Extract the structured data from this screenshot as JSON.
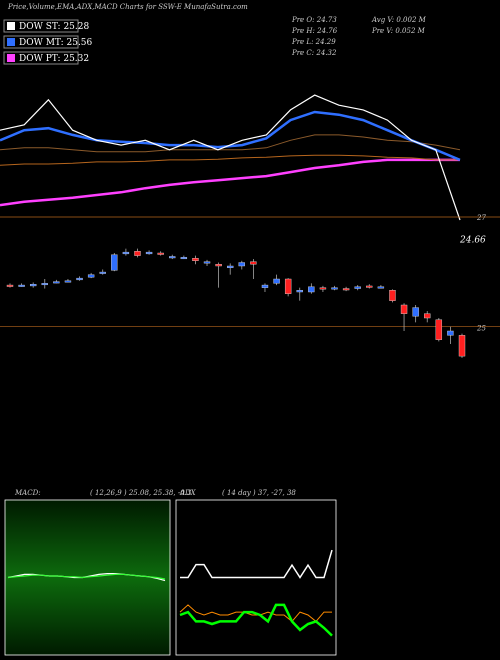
{
  "header": {
    "title": "Price,Volume,EMA,ADX,MACD Charts for SSW-E MunafaSutra.com",
    "legend": [
      {
        "label": "DOW ST: 25.28",
        "color": "#ffffff"
      },
      {
        "label": "DOW MT: 25.56",
        "color": "#2f6fff"
      },
      {
        "label": "DOW PT: 25.32",
        "color": "#ff40ff"
      }
    ],
    "stats": [
      "Pre  O: 24.73",
      "Pre  H: 24.76",
      "Pre  L: 24.29",
      "Pre  C: 24.32"
    ],
    "volume": [
      "Avg V: 0.002  M",
      "Pre  V: 0.052  M"
    ]
  },
  "chart_data": [
    {
      "type": "line",
      "ylim": [
        24.6,
        27.0
      ],
      "annotations": [
        "27",
        "24.66"
      ],
      "series": [
        {
          "color": "#ff40ff",
          "values": [
            24.85,
            24.9,
            24.93,
            24.96,
            25.0,
            25.04,
            25.1,
            25.15,
            25.19,
            25.22,
            25.25,
            25.28,
            25.34,
            25.4,
            25.44,
            25.49,
            25.52,
            25.52,
            25.52,
            25.52
          ]
        },
        {
          "color": "#b5651d",
          "values": [
            25.44,
            25.46,
            25.46,
            25.47,
            25.49,
            25.49,
            25.5,
            25.52,
            25.52,
            25.53,
            25.55,
            25.56,
            25.58,
            25.59,
            25.59,
            25.58,
            25.56,
            25.55,
            25.52,
            25.52
          ]
        },
        {
          "color": "#8b5a2b",
          "values": [
            25.67,
            25.7,
            25.7,
            25.67,
            25.64,
            25.64,
            25.64,
            25.67,
            25.67,
            25.67,
            25.67,
            25.7,
            25.81,
            25.89,
            25.89,
            25.86,
            25.81,
            25.79,
            25.74,
            25.67
          ]
        },
        {
          "color": "#2f6fff",
          "values": [
            25.81,
            25.96,
            25.99,
            25.89,
            25.81,
            25.79,
            25.77,
            25.74,
            25.74,
            25.71,
            25.74,
            25.84,
            26.11,
            26.23,
            26.19,
            26.11,
            25.96,
            25.81,
            25.67,
            25.52
          ]
        },
        {
          "color": "#ffffff",
          "values": [
            25.96,
            26.04,
            26.41,
            25.96,
            25.81,
            25.74,
            25.81,
            25.67,
            25.81,
            25.67,
            25.81,
            25.89,
            26.26,
            26.48,
            26.33,
            26.26,
            26.11,
            25.81,
            25.67,
            24.63
          ]
        }
      ]
    },
    {
      "type": "candlestick",
      "ylim": [
        24.5,
        26.0
      ],
      "yticks": [
        25
      ],
      "open": [
        25.48,
        25.48,
        25.47,
        25.49,
        25.51,
        25.52,
        25.54,
        25.57,
        25.62,
        25.65,
        25.84,
        25.87,
        25.84,
        25.85,
        25.8,
        25.8,
        25.79,
        25.74,
        25.72,
        25.68,
        25.7,
        25.75,
        25.45,
        25.5,
        25.55,
        25.4,
        25.4,
        25.45,
        25.44,
        25.44,
        25.44,
        25.47,
        25.46,
        25.42,
        25.25,
        25.12,
        25.15,
        25.08,
        24.9,
        24.9
      ],
      "close": [
        25.47,
        25.48,
        25.49,
        25.5,
        25.52,
        25.53,
        25.56,
        25.6,
        25.63,
        25.83,
        25.86,
        25.82,
        25.86,
        25.84,
        25.81,
        25.8,
        25.76,
        25.75,
        25.7,
        25.7,
        25.74,
        25.72,
        25.48,
        25.55,
        25.38,
        25.42,
        25.46,
        25.44,
        25.45,
        25.43,
        25.46,
        25.46,
        25.46,
        25.3,
        25.15,
        25.22,
        25.1,
        24.85,
        24.95,
        24.66
      ],
      "high": [
        25.5,
        25.5,
        25.51,
        25.55,
        25.54,
        25.55,
        25.58,
        25.62,
        25.66,
        25.85,
        25.9,
        25.9,
        25.88,
        25.87,
        25.83,
        25.82,
        25.82,
        25.77,
        25.74,
        25.73,
        25.76,
        25.78,
        25.5,
        25.6,
        25.56,
        25.45,
        25.5,
        25.47,
        25.47,
        25.46,
        25.48,
        25.49,
        25.48,
        25.43,
        25.27,
        25.25,
        25.18,
        25.1,
        25.0,
        24.92
      ],
      "low": [
        25.45,
        25.46,
        25.45,
        25.44,
        25.5,
        25.51,
        25.53,
        25.56,
        25.6,
        25.64,
        25.82,
        25.8,
        25.83,
        25.82,
        25.78,
        25.78,
        25.72,
        25.7,
        25.45,
        25.6,
        25.66,
        25.55,
        25.4,
        25.48,
        25.35,
        25.3,
        25.38,
        25.4,
        25.42,
        25.41,
        25.42,
        25.44,
        25.44,
        25.28,
        24.95,
        25.05,
        25.05,
        24.83,
        24.8,
        24.64
      ]
    },
    {
      "type": "line",
      "title": "MACD:",
      "subtitle": "( 12,26,9 ) 25.08, 25.38, -0.3",
      "ylim": [
        -1,
        1
      ],
      "series": [
        {
          "color": "#ffffff",
          "values": [
            0.0,
            0.02,
            0.04,
            0.04,
            0.03,
            0.02,
            0.02,
            0.01,
            0.0,
            0.0,
            0.02,
            0.04,
            0.05,
            0.05,
            0.04,
            0.03,
            0.02,
            0.01,
            -0.01,
            -0.04
          ]
        },
        {
          "color": "#33ff33",
          "values": [
            0.0,
            0.01,
            0.02,
            0.03,
            0.03,
            0.02,
            0.02,
            0.01,
            0.01,
            0.0,
            0.01,
            0.02,
            0.03,
            0.04,
            0.04,
            0.03,
            0.02,
            0.01,
            0.0,
            -0.02
          ]
        }
      ]
    },
    {
      "type": "line",
      "title": "ADX",
      "subtitle": "( 14 day ) 37, -27, 38",
      "ylim": [
        0,
        60
      ],
      "series": [
        {
          "color": "#ffffff",
          "values": [
            30,
            30,
            35,
            35,
            30,
            30,
            30,
            30,
            30,
            30,
            30,
            30,
            30,
            30,
            34.8,
            30,
            34.8,
            30,
            30,
            40.6
          ]
        },
        {
          "color": "#ff8c00",
          "values": [
            16.6,
            19.4,
            16.6,
            15.5,
            16.6,
            15.5,
            15.5,
            16.6,
            16.6,
            15.5,
            15.5,
            16.6,
            15.5,
            15.5,
            13,
            16.6,
            15.5,
            13,
            16.6,
            16.6
          ]
        },
        {
          "color": "#00ff00",
          "values": [
            15.5,
            16.6,
            13,
            13,
            12,
            13,
            13,
            13,
            16.6,
            16.6,
            15.5,
            13,
            19.4,
            19.4,
            13,
            9.7,
            12,
            13,
            10.5,
            7.5
          ]
        }
      ]
    }
  ]
}
